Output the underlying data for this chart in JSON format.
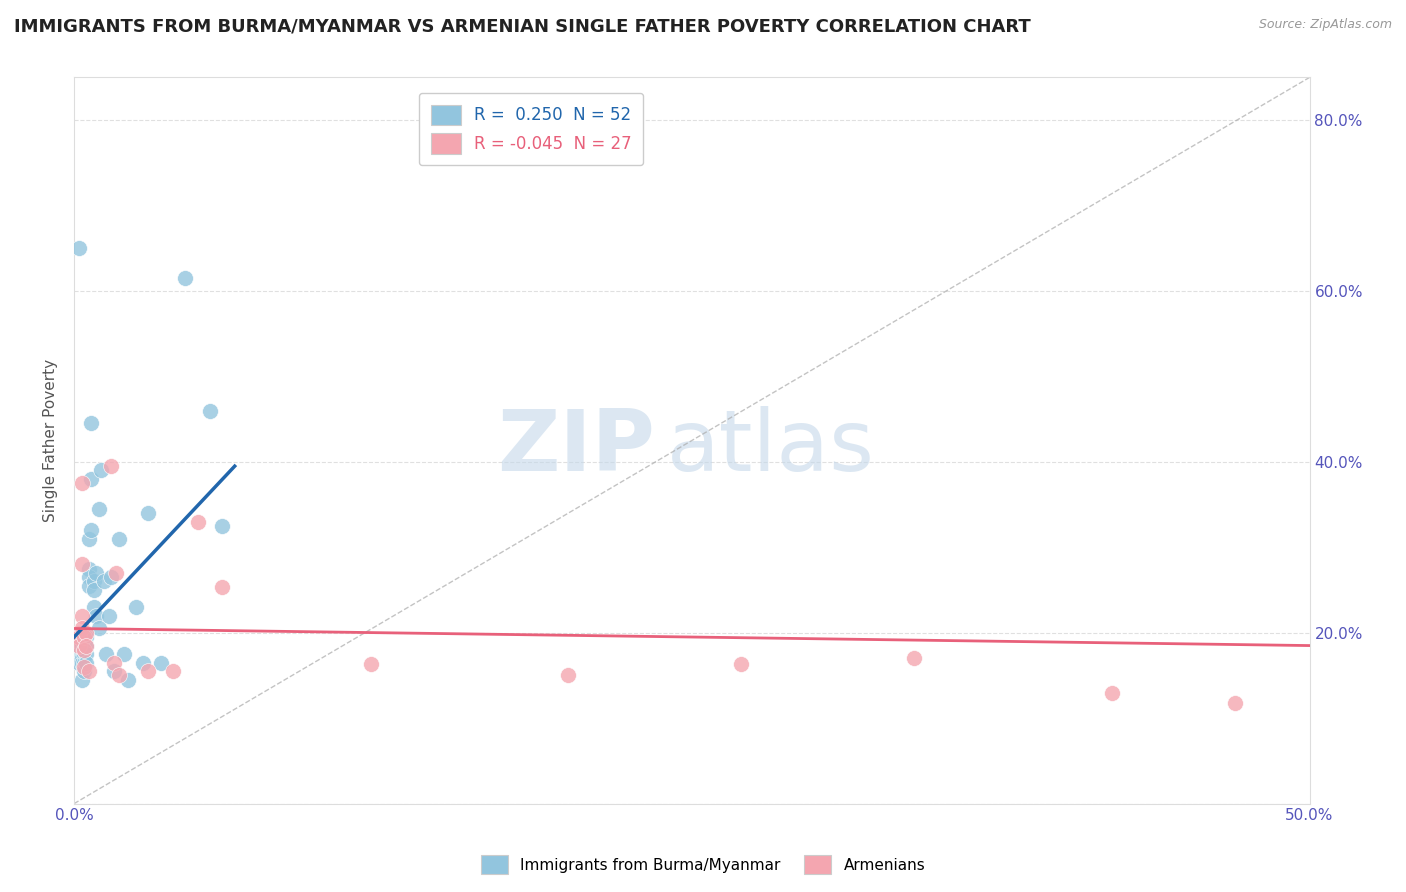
{
  "title": "IMMIGRANTS FROM BURMA/MYANMAR VS ARMENIAN SINGLE FATHER POVERTY CORRELATION CHART",
  "source": "Source: ZipAtlas.com",
  "ylabel": "Single Father Poverty",
  "xlim": [
    0.0,
    0.5
  ],
  "ylim": [
    0.0,
    0.85
  ],
  "r_blue": 0.25,
  "n_blue": 52,
  "r_pink": -0.045,
  "n_pink": 27,
  "blue_color": "#92C5DE",
  "pink_color": "#F4A6B0",
  "blue_line_color": "#2166AC",
  "pink_line_color": "#E8607A",
  "diag_color": "#AAAAAA",
  "watermark_zip": "ZIP",
  "watermark_atlas": "atlas",
  "background_color": "#FFFFFF",
  "blue_scatter_x": [
    0.002,
    0.002,
    0.002,
    0.002,
    0.003,
    0.003,
    0.003,
    0.003,
    0.003,
    0.003,
    0.004,
    0.004,
    0.004,
    0.004,
    0.004,
    0.004,
    0.004,
    0.005,
    0.005,
    0.005,
    0.005,
    0.005,
    0.006,
    0.006,
    0.006,
    0.006,
    0.007,
    0.007,
    0.007,
    0.008,
    0.008,
    0.008,
    0.009,
    0.009,
    0.01,
    0.01,
    0.011,
    0.012,
    0.013,
    0.014,
    0.015,
    0.016,
    0.018,
    0.02,
    0.022,
    0.025,
    0.028,
    0.03,
    0.035,
    0.045,
    0.055,
    0.06
  ],
  "blue_scatter_y": [
    0.65,
    0.185,
    0.175,
    0.165,
    0.195,
    0.185,
    0.175,
    0.17,
    0.165,
    0.145,
    0.2,
    0.195,
    0.185,
    0.18,
    0.175,
    0.165,
    0.155,
    0.2,
    0.195,
    0.185,
    0.175,
    0.165,
    0.31,
    0.275,
    0.265,
    0.255,
    0.445,
    0.38,
    0.32,
    0.26,
    0.25,
    0.23,
    0.27,
    0.22,
    0.345,
    0.205,
    0.39,
    0.26,
    0.175,
    0.22,
    0.265,
    0.155,
    0.31,
    0.175,
    0.145,
    0.23,
    0.165,
    0.34,
    0.165,
    0.615,
    0.46,
    0.325
  ],
  "pink_scatter_x": [
    0.002,
    0.002,
    0.002,
    0.003,
    0.003,
    0.003,
    0.003,
    0.004,
    0.004,
    0.004,
    0.005,
    0.005,
    0.006,
    0.015,
    0.016,
    0.017,
    0.018,
    0.03,
    0.04,
    0.05,
    0.06,
    0.12,
    0.2,
    0.27,
    0.34,
    0.42,
    0.47
  ],
  "pink_scatter_y": [
    0.2,
    0.195,
    0.185,
    0.375,
    0.28,
    0.22,
    0.205,
    0.195,
    0.18,
    0.16,
    0.2,
    0.185,
    0.155,
    0.395,
    0.165,
    0.27,
    0.15,
    0.155,
    0.155,
    0.33,
    0.253,
    0.163,
    0.15,
    0.163,
    0.17,
    0.13,
    0.118
  ],
  "blue_line_x": [
    0.0,
    0.065
  ],
  "blue_line_y": [
    0.195,
    0.395
  ],
  "pink_line_x": [
    0.0,
    0.5
  ],
  "pink_line_y": [
    0.205,
    0.185
  ],
  "grid_color": "#DDDDDD",
  "title_fontsize": 13,
  "axis_label_fontsize": 11,
  "tick_fontsize": 11,
  "tick_color": "#5555BB"
}
